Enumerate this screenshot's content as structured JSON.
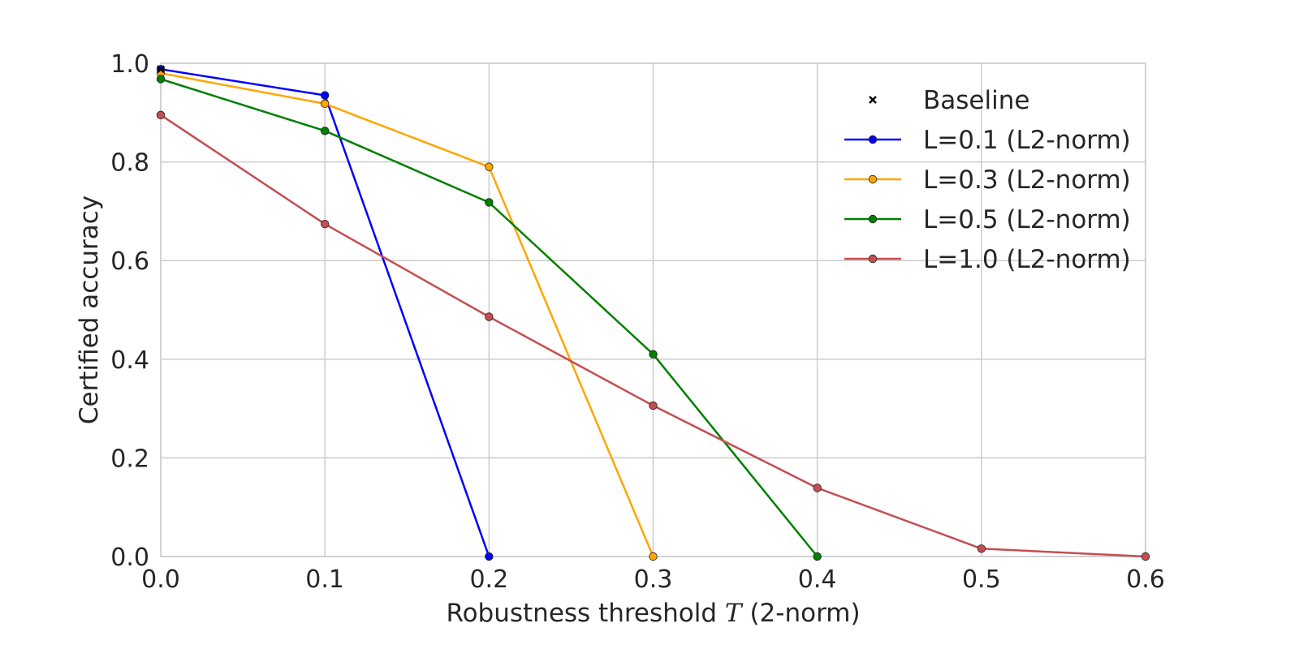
{
  "chart_data": {
    "type": "line",
    "title": "",
    "xlabel_prefix": "Robustness threshold ",
    "xlabel_var": "T",
    "xlabel_suffix": " (2-norm)",
    "ylabel": "Certified accuracy",
    "xlim": [
      0.0,
      0.6
    ],
    "ylim": [
      0.0,
      1.0
    ],
    "xticks": [
      0.0,
      0.1,
      0.2,
      0.3,
      0.4,
      0.5,
      0.6
    ],
    "xtick_labels": [
      "0.0",
      "0.1",
      "0.2",
      "0.3",
      "0.4",
      "0.5",
      "0.6"
    ],
    "yticks": [
      0.0,
      0.2,
      0.4,
      0.6,
      0.8,
      1.0
    ],
    "ytick_labels": [
      "0.0",
      "0.2",
      "0.4",
      "0.6",
      "0.8",
      "1.0"
    ],
    "grid": true,
    "legend_position": "top-right",
    "baseline": {
      "name": "Baseline",
      "x": [
        0.0
      ],
      "y": [
        0.988
      ],
      "color": "#000000",
      "marker": "x"
    },
    "series": [
      {
        "name": "L=0.1 (L2-norm)",
        "color": "#0000ff",
        "x": [
          0.0,
          0.1,
          0.2
        ],
        "y": [
          0.988,
          0.935,
          0.0
        ]
      },
      {
        "name": "L=0.3 (L2-norm)",
        "color": "#ffa500",
        "x": [
          0.0,
          0.1,
          0.2,
          0.3
        ],
        "y": [
          0.98,
          0.918,
          0.79,
          0.0
        ]
      },
      {
        "name": "L=0.5 (L2-norm)",
        "color": "#008000",
        "x": [
          0.0,
          0.1,
          0.2,
          0.3,
          0.4
        ],
        "y": [
          0.968,
          0.863,
          0.718,
          0.41,
          0.0
        ]
      },
      {
        "name": "L=1.0 (L2-norm)",
        "color": "#c44e52",
        "x": [
          0.0,
          0.1,
          0.2,
          0.3,
          0.4,
          0.5,
          0.6
        ],
        "y": [
          0.895,
          0.674,
          0.486,
          0.306,
          0.139,
          0.016,
          0.0
        ]
      }
    ]
  }
}
